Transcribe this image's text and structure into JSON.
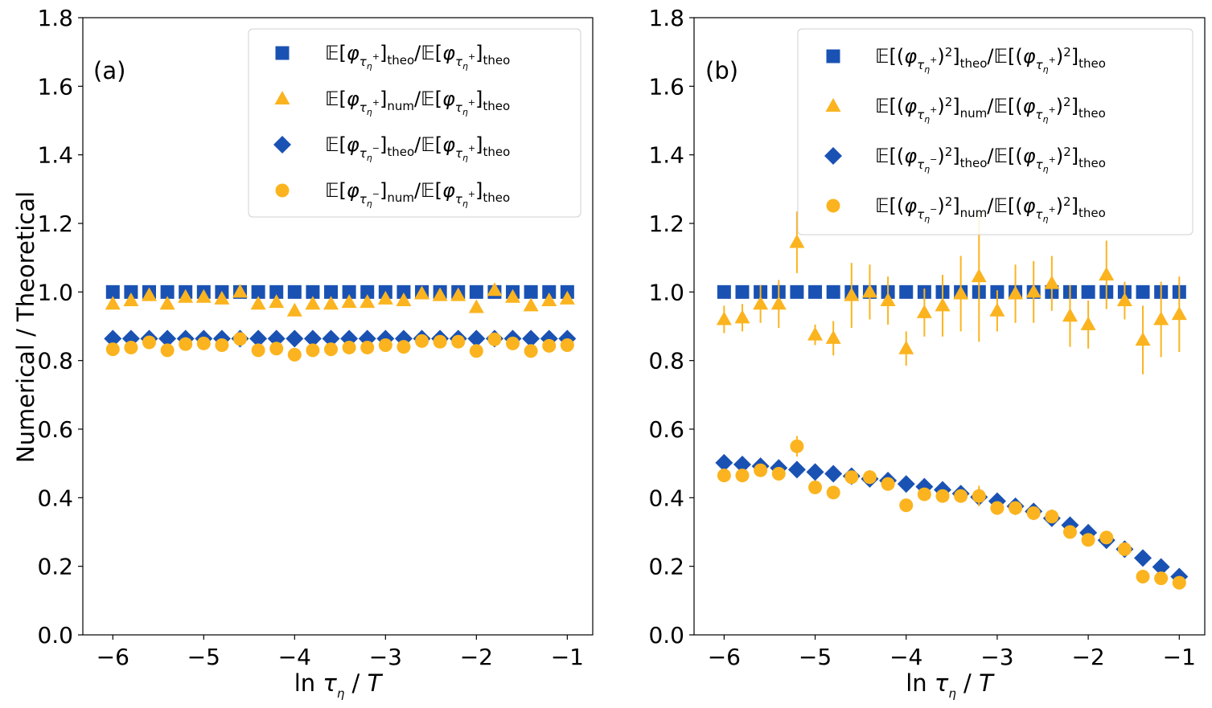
{
  "colors": {
    "theo": "#1a52b3",
    "num": "#fbb41f",
    "axis": "#000000"
  },
  "legend_parts": {
    "E": "𝔼",
    "phi": "φ",
    "tau": "τ",
    "eta": "η",
    "plus": "+",
    "minus": "−",
    "theo": "theo",
    "num": "num",
    "sq": "2"
  },
  "chart_data": [
    {
      "type": "scatter",
      "panel_label": "(a)",
      "xlabel": "ln τ_η / T",
      "ylabel": "Numerical / Theoretical",
      "xlim": [
        -6.33,
        -0.72
      ],
      "ylim": [
        0.0,
        1.8
      ],
      "xticks": [
        -6,
        -5,
        -4,
        -3,
        -2,
        -1
      ],
      "yticks": [
        0.0,
        0.2,
        0.4,
        0.6,
        0.8,
        1.0,
        1.2,
        1.4,
        1.6,
        1.8
      ],
      "x": [
        -6.0,
        -5.8,
        -5.6,
        -5.4,
        -5.2,
        -5.0,
        -4.8,
        -4.6,
        -4.4,
        -4.2,
        -4.0,
        -3.8,
        -3.6,
        -3.4,
        -3.2,
        -3.0,
        -2.8,
        -2.6,
        -2.4,
        -2.2,
        -2.0,
        -1.8,
        -1.6,
        -1.4,
        -1.2,
        -1.0
      ],
      "series": [
        {
          "name": "E[φ_{τη+}]_theo/E[φ_{τη+}]_theo",
          "marker": "square",
          "color": "#1a52b3",
          "values": [
            1.0,
            1.0,
            1.0,
            1.0,
            1.0,
            1.0,
            1.0,
            1.0,
            1.0,
            1.0,
            1.0,
            1.0,
            1.0,
            1.0,
            1.0,
            1.0,
            1.0,
            1.0,
            1.0,
            1.0,
            1.0,
            1.0,
            1.0,
            1.0,
            1.0,
            1.0
          ]
        },
        {
          "name": "E[φ_{τη+}]_num/E[φ_{τη+}]_theo",
          "marker": "triangle",
          "color": "#fbb41f",
          "values": [
            0.965,
            0.975,
            0.99,
            0.965,
            0.985,
            0.985,
            0.98,
            1.0,
            0.965,
            0.97,
            0.945,
            0.965,
            0.965,
            0.97,
            0.97,
            0.98,
            0.975,
            0.995,
            0.99,
            0.99,
            0.955,
            1.005,
            0.985,
            0.96,
            0.975,
            0.98
          ]
        },
        {
          "name": "E[φ_{τη−}]_theo/E[φ_{τη+}]_theo",
          "marker": "diamond",
          "color": "#1a52b3",
          "values": [
            0.864,
            0.864,
            0.864,
            0.864,
            0.864,
            0.864,
            0.864,
            0.864,
            0.864,
            0.864,
            0.864,
            0.864,
            0.864,
            0.864,
            0.864,
            0.864,
            0.864,
            0.864,
            0.864,
            0.864,
            0.864,
            0.864,
            0.864,
            0.864,
            0.864,
            0.864
          ]
        },
        {
          "name": "E[φ_{τη−}]_num/E[φ_{τη+}]_theo",
          "marker": "circle",
          "color": "#fbb41f",
          "values": [
            0.833,
            0.838,
            0.853,
            0.83,
            0.848,
            0.85,
            0.845,
            0.863,
            0.83,
            0.835,
            0.817,
            0.83,
            0.833,
            0.838,
            0.838,
            0.845,
            0.84,
            0.857,
            0.855,
            0.855,
            0.828,
            0.862,
            0.85,
            0.828,
            0.843,
            0.845
          ]
        }
      ],
      "legend": [
        {
          "prefix": "E[φ",
          "sign": "+",
          "sub": "theo",
          "post": "/E[φ"
        },
        {
          "prefix": "E[φ",
          "sign": "+",
          "sub": "num",
          "post": "/E[φ"
        },
        {
          "prefix": "E[φ",
          "sign": "−",
          "sub": "theo",
          "post": "/E[φ"
        },
        {
          "prefix": "E[φ",
          "sign": "−",
          "sub": "num",
          "post": "/E[φ"
        }
      ]
    },
    {
      "type": "scatter",
      "panel_label": "(b)",
      "xlabel": "ln τ_η / T",
      "ylabel": "",
      "xlim": [
        -6.33,
        -0.72
      ],
      "ylim": [
        0.0,
        1.8
      ],
      "xticks": [
        -6,
        -5,
        -4,
        -3,
        -2,
        -1
      ],
      "yticks": [
        0.0,
        0.2,
        0.4,
        0.6,
        0.8,
        1.0,
        1.2,
        1.4,
        1.6,
        1.8
      ],
      "x": [
        -6.0,
        -5.8,
        -5.6,
        -5.4,
        -5.2,
        -5.0,
        -4.8,
        -4.6,
        -4.4,
        -4.2,
        -4.0,
        -3.8,
        -3.6,
        -3.4,
        -3.2,
        -3.0,
        -2.8,
        -2.6,
        -2.4,
        -2.2,
        -2.0,
        -1.8,
        -1.6,
        -1.4,
        -1.2,
        -1.0
      ],
      "series": [
        {
          "name": "E[(φ_{τη+})²]_theo/E[(φ_{τη+})²]_theo",
          "marker": "square",
          "color": "#1a52b3",
          "values": [
            1.0,
            1.0,
            1.0,
            1.0,
            1.0,
            1.0,
            1.0,
            1.0,
            1.0,
            1.0,
            1.0,
            1.0,
            1.0,
            1.0,
            1.0,
            1.0,
            1.0,
            1.0,
            1.0,
            1.0,
            1.0,
            1.0,
            1.0,
            1.0,
            1.0,
            1.0
          ]
        },
        {
          "name": "E[(φ_{τη+})²]_num/E[(φ_{τη+})²]_theo",
          "marker": "triangle",
          "color": "#fbb41f",
          "values": [
            0.92,
            0.925,
            0.965,
            0.965,
            1.145,
            0.875,
            0.865,
            0.99,
            1.0,
            0.975,
            0.835,
            0.94,
            0.96,
            0.995,
            1.045,
            0.945,
            0.995,
            1.0,
            1.025,
            0.93,
            0.905,
            1.05,
            0.975,
            0.86,
            0.92,
            0.935
          ],
          "errors": [
            0.04,
            0.04,
            0.055,
            0.07,
            0.09,
            0.03,
            0.05,
            0.095,
            0.08,
            0.07,
            0.05,
            0.07,
            0.09,
            0.11,
            0.19,
            0.06,
            0.085,
            0.09,
            0.08,
            0.09,
            0.07,
            0.1,
            0.055,
            0.1,
            0.11,
            0.11
          ]
        },
        {
          "name": "E[(φ_{τη−})²]_theo/E[(φ_{τη+})²]_theo",
          "marker": "diamond",
          "color": "#1a52b3",
          "values": [
            0.502,
            0.497,
            0.492,
            0.487,
            0.482,
            0.475,
            0.47,
            0.463,
            0.455,
            0.45,
            0.44,
            0.432,
            0.423,
            0.412,
            0.402,
            0.39,
            0.375,
            0.36,
            0.34,
            0.32,
            0.298,
            0.276,
            0.25,
            0.224,
            0.198,
            0.17
          ]
        },
        {
          "name": "E[(φ_{τη−})²]_num/E[(φ_{τη+})²]_theo",
          "marker": "circle",
          "color": "#fbb41f",
          "values": [
            0.465,
            0.465,
            0.48,
            0.47,
            0.55,
            0.43,
            0.415,
            0.46,
            0.46,
            0.44,
            0.378,
            0.41,
            0.405,
            0.405,
            0.405,
            0.37,
            0.37,
            0.355,
            0.345,
            0.3,
            0.277,
            0.284,
            0.25,
            0.17,
            0.165,
            0.152
          ],
          "errors": [
            0.0,
            0.0,
            0.0,
            0.0,
            0.03,
            0.0,
            0.0,
            0.0,
            0.02,
            0.0,
            0.0,
            0.0,
            0.0,
            0.0,
            0.03,
            0.0,
            0.0,
            0.0,
            0.0,
            0.0,
            0.0,
            0.0,
            0.0,
            0.0,
            0.0,
            0.0
          ]
        }
      ],
      "legend": [
        {
          "prefix": "E[(φ",
          "sign": "+",
          "sub": "theo",
          "post": "/E[(φ"
        },
        {
          "prefix": "E[(φ",
          "sign": "+",
          "sub": "num",
          "post": "/E[(φ"
        },
        {
          "prefix": "E[(φ",
          "sign": "−",
          "sub": "theo",
          "post": "/E[(φ"
        },
        {
          "prefix": "E[(φ",
          "sign": "−",
          "sub": "num",
          "post": "/E[(φ"
        }
      ]
    }
  ]
}
